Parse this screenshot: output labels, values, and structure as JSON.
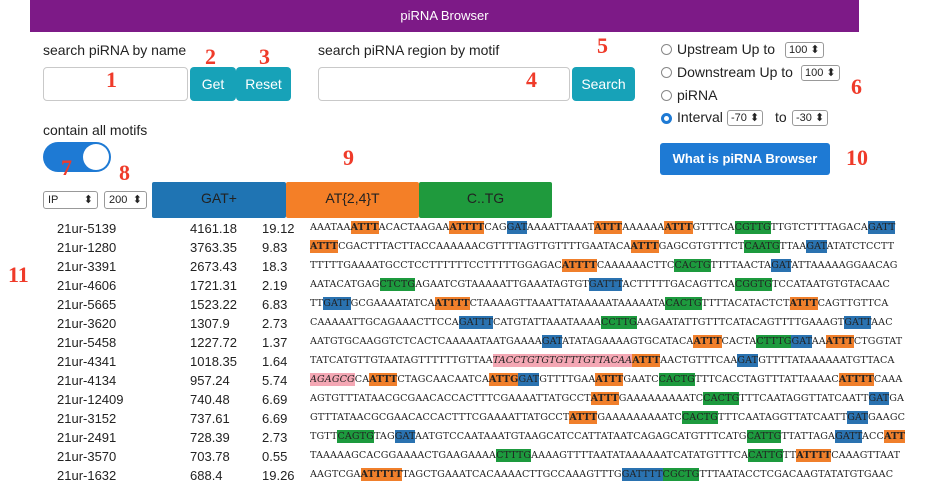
{
  "header": {
    "title": "piRNA Browser"
  },
  "search_name": {
    "label": "search piRNA by name",
    "value": "",
    "get_label": "Get",
    "reset_label": "Reset"
  },
  "search_motif": {
    "label": "search piRNA region by motif",
    "value": "",
    "search_label": "Search"
  },
  "region_options": {
    "upstream": {
      "label": "Upstream Up to",
      "value": "100"
    },
    "downstream": {
      "label": "Downstream Up to",
      "value": "100"
    },
    "pirna": {
      "label": "piRNA"
    },
    "interval": {
      "label": "Interval",
      "from": "-70",
      "to_label": "to",
      "to": "-30",
      "selected": true
    }
  },
  "contain_all": {
    "label": "contain all motifs",
    "enabled": true
  },
  "what_button": {
    "label": "What is piRNA Browser"
  },
  "controls": {
    "sort": "IP",
    "count": "200"
  },
  "motifs": [
    {
      "label": "GAT+",
      "color": "#1f74b3"
    },
    {
      "label": "AT{2,4}T",
      "color": "#f47f27"
    },
    {
      "label": "C..TG",
      "color": "#1f9a3d"
    }
  ],
  "annotations": [
    "1",
    "2",
    "3",
    "4",
    "5",
    "6",
    "7",
    "8",
    "9",
    "10",
    "11"
  ],
  "rows": [
    {
      "name": "21ur-5139",
      "v1": "4161.18",
      "v2": "19.12",
      "seq": [
        [
          "AAATAA",
          ""
        ],
        [
          "ATTT",
          "o"
        ],
        [
          "ACACTAAGAA",
          ""
        ],
        [
          "ATTTT",
          "o"
        ],
        [
          "CAG",
          ""
        ],
        [
          "GAT",
          "b"
        ],
        [
          "AAAATTAAAT",
          ""
        ],
        [
          "ATTT",
          "o"
        ],
        [
          "AAAAAA",
          ""
        ],
        [
          "ATTT",
          "o"
        ],
        [
          "GTTTCA",
          ""
        ],
        [
          "CGTTG",
          "g"
        ],
        [
          "TTGTCTTTTAGACA",
          ""
        ],
        [
          "GATT",
          "b"
        ]
      ]
    },
    {
      "name": "21ur-1280",
      "v1": "3763.35",
      "v2": "9.83",
      "seq": [
        [
          "ATTT",
          "o"
        ],
        [
          "CGACTTTACTTACCAAAAAACGTTTTAGTTGTTTTGAATACA",
          ""
        ],
        [
          "ATTT",
          "o"
        ],
        [
          "GAGCGTGTTTCT",
          ""
        ],
        [
          "CAATG",
          "g"
        ],
        [
          "TTAA",
          ""
        ],
        [
          "GAT",
          "b"
        ],
        [
          "ATATCTCCTT",
          ""
        ]
      ]
    },
    {
      "name": "21ur-3391",
      "v1": "2673.43",
      "v2": "18.3",
      "seq": [
        [
          "TTTTTGAAAATGCCTCCTTTTTTCCTTTTTGGAGAC",
          ""
        ],
        [
          "ATTTT",
          "o"
        ],
        [
          "CAAAAAACTTC",
          ""
        ],
        [
          "CACTG",
          "g"
        ],
        [
          "TTTTAACTA",
          ""
        ],
        [
          "GAT",
          "b"
        ],
        [
          "ATTAAAAAGGAACAG",
          ""
        ]
      ]
    },
    {
      "name": "21ur-4606",
      "v1": "1721.31",
      "v2": "2.19",
      "seq": [
        [
          "AATACATGAG",
          ""
        ],
        [
          "CTCTG",
          "g"
        ],
        [
          "AGAATCGTAAAAATTGAAATAGTGT",
          ""
        ],
        [
          "GATTT",
          "b"
        ],
        [
          "ACTTTTTGACAGTTCA",
          ""
        ],
        [
          "CGGTG",
          "g"
        ],
        [
          "TCCATAATGTGTACAAC",
          ""
        ]
      ]
    },
    {
      "name": "21ur-5665",
      "v1": "1523.22",
      "v2": "6.83",
      "seq": [
        [
          "TT",
          ""
        ],
        [
          "GATT",
          "b"
        ],
        [
          "GCGAAAATATCA",
          ""
        ],
        [
          "ATTTT",
          "o"
        ],
        [
          "CTAAAAGTTAAATTATAAAAATAAAAATA",
          ""
        ],
        [
          "CACTG",
          "g"
        ],
        [
          "TTTTACATACTCT",
          ""
        ],
        [
          "ATTT",
          "o"
        ],
        [
          "CAGTTGTTCA",
          ""
        ]
      ]
    },
    {
      "name": "21ur-3620",
      "v1": "1307.9",
      "v2": "2.73",
      "seq": [
        [
          "CAAAAATTGCAGAAACTTCCA",
          ""
        ],
        [
          "GATTT",
          "b"
        ],
        [
          "CATGTATTAAATAAAA",
          ""
        ],
        [
          "CCTTG",
          "g"
        ],
        [
          "AAGAATATTGTTTCATACAGTTTTGAAAGT",
          ""
        ],
        [
          "GATT",
          "b"
        ],
        [
          "AAC",
          ""
        ]
      ]
    },
    {
      "name": "21ur-5458",
      "v1": "1227.72",
      "v2": "1.37",
      "seq": [
        [
          "AATGTGCAAGGTCTCACTCAAAAATAATGAAAA",
          ""
        ],
        [
          "GAT",
          "b"
        ],
        [
          "ATATAGAAAAGTGCATACA",
          ""
        ],
        [
          "ATTT",
          "o"
        ],
        [
          "CACTA",
          ""
        ],
        [
          "CTTTG",
          "g"
        ],
        [
          "GAT",
          "b"
        ],
        [
          "AA",
          ""
        ],
        [
          "ATTT",
          "o"
        ],
        [
          "CTGGTAT",
          ""
        ]
      ]
    },
    {
      "name": "21ur-4341",
      "v1": "1018.35",
      "v2": "1.64",
      "seq": [
        [
          "TATCATGTTGTAATAGTTTTTTGTTAA",
          ""
        ],
        [
          "TACCTGTGTGTTTGTTACAA",
          "p"
        ],
        [
          "ATTT",
          "o"
        ],
        [
          "AACTGTTTCAA",
          ""
        ],
        [
          "GAT",
          "b"
        ],
        [
          "GTTTTATAAAAAATGTTACA",
          ""
        ]
      ]
    },
    {
      "name": "21ur-4134",
      "v1": "957.24",
      "v2": "5.74",
      "seq": [
        [
          "AGAGCG",
          "p"
        ],
        [
          "CA",
          ""
        ],
        [
          "ATTT",
          "o"
        ],
        [
          "CTAGCAACAATCA",
          ""
        ],
        [
          "ATTG",
          "o"
        ],
        [
          "GAT",
          "b"
        ],
        [
          "GTTTTGAA",
          ""
        ],
        [
          "ATTT",
          "o"
        ],
        [
          "GAATC",
          ""
        ],
        [
          "CACTG",
          "g"
        ],
        [
          "TTTCACCTAGTTTATTAAAAC",
          ""
        ],
        [
          "ATTTT",
          "o"
        ],
        [
          "CAAA",
          ""
        ]
      ]
    },
    {
      "name": "21ur-12409",
      "v1": "740.48",
      "v2": "6.69",
      "seq": [
        [
          "AGTGTTTATAACGCGAACACCACTTTCGAAAATTATGCCT",
          ""
        ],
        [
          "ATTT",
          "o"
        ],
        [
          "GAAAAAAAAATC",
          ""
        ],
        [
          "CACTG",
          "g"
        ],
        [
          "TTTCAATAGGTTATCAATT",
          ""
        ],
        [
          "GAT",
          "b"
        ],
        [
          "GA",
          ""
        ]
      ]
    },
    {
      "name": "21ur-3152",
      "v1": "737.61",
      "v2": "6.69",
      "seq": [
        [
          "GTTTATAACGCGAACACCACTTTCGAAAATTATGCCT",
          ""
        ],
        [
          "ATTT",
          "o"
        ],
        [
          "GAAAAAAAAATC",
          ""
        ],
        [
          "CACTG",
          "g"
        ],
        [
          "TTTCAATAGGTTATCAATT",
          ""
        ],
        [
          "GAT",
          "b"
        ],
        [
          "GAAGC",
          ""
        ]
      ]
    },
    {
      "name": "21ur-2491",
      "v1": "728.39",
      "v2": "2.73",
      "seq": [
        [
          "TGTT",
          ""
        ],
        [
          "CAGTG",
          "g"
        ],
        [
          "TAG",
          ""
        ],
        [
          "GAT",
          "b"
        ],
        [
          "AATGTCCAATAAATGTAAGCATCCATTATAATCAGAGCATGTTTCATG",
          ""
        ],
        [
          "CATTG",
          "g"
        ],
        [
          "TTATTAGA",
          ""
        ],
        [
          "GATT",
          "b"
        ],
        [
          "ACC",
          ""
        ],
        [
          "ATT",
          "o"
        ]
      ]
    },
    {
      "name": "21ur-3570",
      "v1": "703.78",
      "v2": "0.55",
      "seq": [
        [
          "TAAAAAGCACGGAAAACTGAAGAAAA",
          ""
        ],
        [
          "CTTTG",
          "g"
        ],
        [
          "AAAAGTTTTAATATAAAAAATCATATGTTTCA",
          ""
        ],
        [
          "CATTG",
          "g"
        ],
        [
          "TT",
          ""
        ],
        [
          "ATTTT",
          "o"
        ],
        [
          "CAAAGTTAAT",
          ""
        ]
      ]
    },
    {
      "name": "21ur-1632",
      "v1": "688.4",
      "v2": "19.26",
      "seq": [
        [
          "AAGTCGA",
          ""
        ],
        [
          "ATTTTT",
          "o"
        ],
        [
          "TAGCTGAAATCACAAAACTTGCCAAAGTTTG",
          ""
        ],
        [
          "GATTTT",
          "b"
        ],
        [
          "CGCTG",
          "g"
        ],
        [
          "TTTAATACCTCGACAAGTATATGTGAAC",
          ""
        ]
      ]
    }
  ]
}
